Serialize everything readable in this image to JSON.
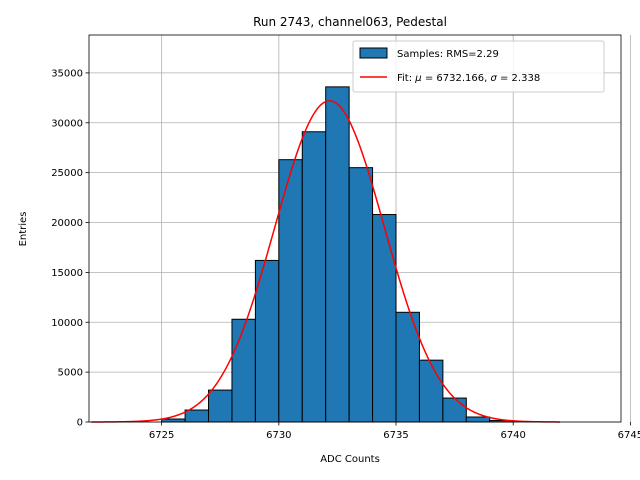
{
  "chart_data": {
    "type": "bar",
    "title": "Run 2743, channel063, Pedestal",
    "xlabel": "ADC Counts",
    "ylabel": "Entries",
    "xlim": [
      6721.9,
      6744.6
    ],
    "ylim": [
      0,
      38800
    ],
    "xticks": [
      6725,
      6730,
      6735,
      6740,
      6745
    ],
    "yticks": [
      0,
      5000,
      10000,
      15000,
      20000,
      25000,
      30000,
      35000
    ],
    "grid": true,
    "legend_position": "top-right",
    "bin_width": 1,
    "bars": {
      "name": "Samples: RMS=2.29",
      "color": "#1f77b4",
      "bin_left_edges": [
        6725,
        6726,
        6727,
        6728,
        6729,
        6730,
        6731,
        6732,
        6733,
        6734,
        6735,
        6736,
        6737,
        6738,
        6739
      ],
      "values": [
        300,
        1200,
        3200,
        10300,
        16200,
        26300,
        29100,
        33600,
        25500,
        20800,
        11000,
        6200,
        2400,
        500,
        150
      ]
    },
    "fit": {
      "name_prefix": "Fit: ",
      "name_mu": "μ",
      "name_mid": " = 6732.166, ",
      "name_sigma": "σ",
      "name_suffix": " = 2.338",
      "color": "#ff0000",
      "mu": 6732.166,
      "sigma": 2.338,
      "amplitude": 32200,
      "x_range": [
        6722,
        6742
      ]
    }
  }
}
